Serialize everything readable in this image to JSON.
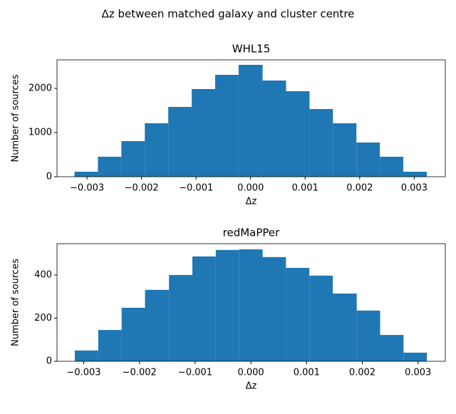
{
  "suptitle": "Δz between matched galaxy and cluster centre",
  "chart_data": [
    {
      "type": "histogram",
      "title": "WHL15",
      "x_label": "Δz",
      "y_label": "Number of sources",
      "color": "#1f77b4",
      "bins": [
        -0.00323,
        -0.0028,
        -0.00237,
        -0.00194,
        -0.00151,
        -0.00108,
        -0.00065,
        -0.00022,
        0.00022,
        0.00065,
        0.00108,
        0.00151,
        0.00194,
        0.00237,
        0.0028,
        0.00323
      ],
      "values": [
        113,
        452,
        806,
        1210,
        1580,
        1984,
        2306,
        2532,
        2177,
        1935,
        1532,
        1210,
        774,
        452,
        113
      ],
      "xlim": [
        -0.00355,
        0.00357
      ],
      "ylim": [
        0,
        2645
      ],
      "xticks": [
        {
          "value": -0.003,
          "label": "−0.003"
        },
        {
          "value": -0.002,
          "label": "−0.002"
        },
        {
          "value": -0.001,
          "label": "−0.001"
        },
        {
          "value": 0,
          "label": "0.000"
        },
        0.001,
        0.002,
        0.003
      ],
      "yticks": [
        0,
        1000,
        2000
      ]
    },
    {
      "type": "histogram",
      "title": "redMaPPer",
      "x_label": "Δz",
      "y_label": "Number of sources",
      "color": "#1f77b4",
      "bins": [
        -0.00316,
        -0.00274,
        -0.00232,
        -0.0019,
        -0.00147,
        -0.00105,
        -0.00063,
        -0.00021,
        0.00021,
        0.00063,
        0.00105,
        0.00147,
        0.0019,
        0.00232,
        0.00274,
        0.00316
      ],
      "values": [
        50,
        145,
        248,
        331,
        400,
        486,
        516,
        519,
        483,
        433,
        397,
        314,
        235,
        122,
        40
      ],
      "xlim": [
        -0.00348,
        0.00349
      ],
      "ylim": [
        0,
        545
      ],
      "xticks": [
        {
          "value": -0.003,
          "label": "−0.003"
        },
        {
          "value": -0.002,
          "label": "−0.002"
        },
        {
          "value": -0.001,
          "label": "−0.001"
        },
        {
          "value": 0,
          "label": "0.000"
        },
        0.001,
        0.002,
        0.003
      ],
      "yticks": [
        0,
        200,
        400
      ]
    }
  ]
}
